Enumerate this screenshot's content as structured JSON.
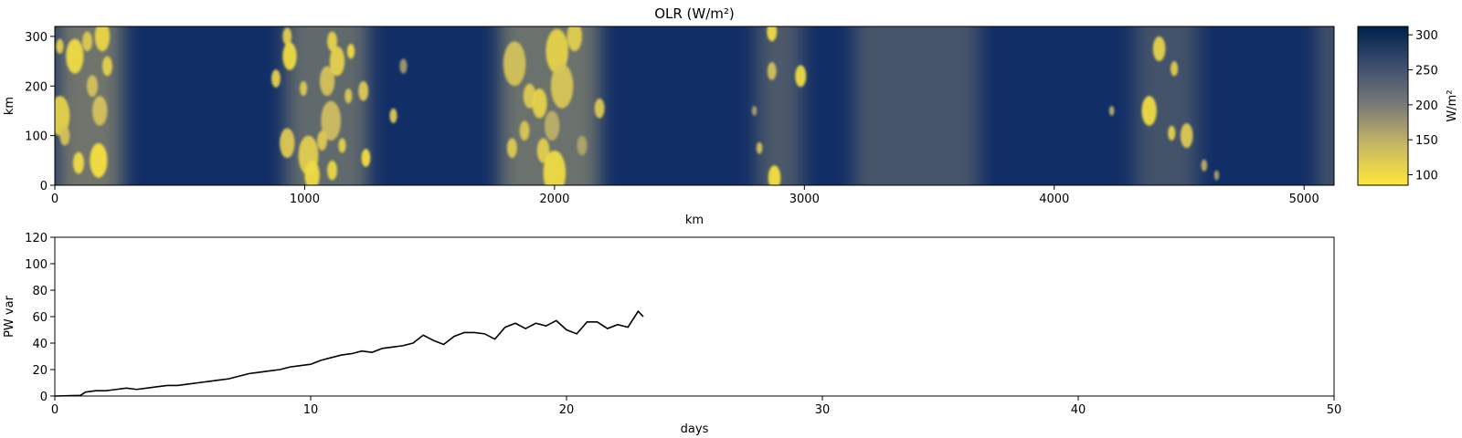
{
  "chart_data": [
    {
      "type": "heatmap",
      "title": "OLR (W/m²)",
      "xlabel": "km",
      "ylabel": "km",
      "xlim": [
        0,
        5120
      ],
      "ylim": [
        0,
        320
      ],
      "xticks": [
        0,
        1000,
        2000,
        3000,
        4000,
        5000
      ],
      "yticks": [
        0,
        100,
        200,
        300
      ],
      "colorbar": {
        "label": "W/m²",
        "range": [
          85,
          312
        ],
        "ticks": [
          100,
          150,
          200,
          250,
          300
        ],
        "colormap": "cividis (yellow = low OLR, dark blue = high OLR)",
        "low_color": "#fde737",
        "mid_color": "#7c7b78",
        "high_color": "#00204c"
      },
      "convective_bands_km": [
        {
          "center": 140,
          "width": 260,
          "strength": 0.8
        },
        {
          "center": 1090,
          "width": 330,
          "strength": 0.6
        },
        {
          "center": 1980,
          "width": 400,
          "strength": 0.75
        },
        {
          "center": 2900,
          "width": 180,
          "strength": 0.3
        },
        {
          "center": 3450,
          "width": 500,
          "strength": 0.25
        },
        {
          "center": 4450,
          "width": 250,
          "strength": 0.2
        },
        {
          "center": 5100,
          "width": 80,
          "strength": 0.3
        }
      ],
      "cells": [
        {
          "x": 80,
          "y": 260,
          "r": 35,
          "v": 100
        },
        {
          "x": 20,
          "y": 280,
          "r": 15,
          "v": 110
        },
        {
          "x": 190,
          "y": 300,
          "r": 30,
          "v": 105
        },
        {
          "x": 130,
          "y": 290,
          "r": 20,
          "v": 120
        },
        {
          "x": 210,
          "y": 240,
          "r": 20,
          "v": 110
        },
        {
          "x": 20,
          "y": 140,
          "r": 40,
          "v": 110
        },
        {
          "x": 150,
          "y": 200,
          "r": 22,
          "v": 130
        },
        {
          "x": 180,
          "y": 150,
          "r": 30,
          "v": 130
        },
        {
          "x": 95,
          "y": 45,
          "r": 22,
          "v": 100
        },
        {
          "x": 175,
          "y": 50,
          "r": 35,
          "v": 95
        },
        {
          "x": 40,
          "y": 100,
          "r": 20,
          "v": 130
        },
        {
          "x": 930,
          "y": 300,
          "r": 18,
          "v": 115
        },
        {
          "x": 940,
          "y": 260,
          "r": 28,
          "v": 100
        },
        {
          "x": 885,
          "y": 215,
          "r": 18,
          "v": 110
        },
        {
          "x": 995,
          "y": 195,
          "r": 15,
          "v": 120
        },
        {
          "x": 1090,
          "y": 210,
          "r": 30,
          "v": 130
        },
        {
          "x": 1130,
          "y": 250,
          "r": 30,
          "v": 110
        },
        {
          "x": 1110,
          "y": 290,
          "r": 20,
          "v": 110
        },
        {
          "x": 1185,
          "y": 270,
          "r": 15,
          "v": 100
        },
        {
          "x": 1105,
          "y": 130,
          "r": 40,
          "v": 135
        },
        {
          "x": 930,
          "y": 85,
          "r": 30,
          "v": 120
        },
        {
          "x": 1015,
          "y": 60,
          "r": 40,
          "v": 115
        },
        {
          "x": 1070,
          "y": 90,
          "r": 20,
          "v": 120
        },
        {
          "x": 1030,
          "y": 20,
          "r": 30,
          "v": 100
        },
        {
          "x": 1110,
          "y": 30,
          "r": 20,
          "v": 105
        },
        {
          "x": 1150,
          "y": 80,
          "r": 15,
          "v": 110
        },
        {
          "x": 1175,
          "y": 180,
          "r": 15,
          "v": 120
        },
        {
          "x": 1235,
          "y": 190,
          "r": 20,
          "v": 120
        },
        {
          "x": 1245,
          "y": 55,
          "r": 18,
          "v": 95
        },
        {
          "x": 1355,
          "y": 140,
          "r": 15,
          "v": 120
        },
        {
          "x": 1395,
          "y": 240,
          "r": 15,
          "v": 170
        },
        {
          "x": 1840,
          "y": 245,
          "r": 45,
          "v": 130
        },
        {
          "x": 1830,
          "y": 75,
          "r": 20,
          "v": 120
        },
        {
          "x": 1900,
          "y": 180,
          "r": 25,
          "v": 120
        },
        {
          "x": 1940,
          "y": 165,
          "r": 30,
          "v": 110
        },
        {
          "x": 1955,
          "y": 70,
          "r": 25,
          "v": 115
        },
        {
          "x": 1880,
          "y": 110,
          "r": 20,
          "v": 125
        },
        {
          "x": 2000,
          "y": 25,
          "r": 45,
          "v": 100
        },
        {
          "x": 2010,
          "y": 270,
          "r": 45,
          "v": 110
        },
        {
          "x": 2030,
          "y": 200,
          "r": 45,
          "v": 125
        },
        {
          "x": 2080,
          "y": 300,
          "r": 30,
          "v": 115
        },
        {
          "x": 2180,
          "y": 155,
          "r": 20,
          "v": 120
        },
        {
          "x": 1990,
          "y": 120,
          "r": 30,
          "v": 150
        },
        {
          "x": 2110,
          "y": 80,
          "r": 20,
          "v": 160
        },
        {
          "x": 2870,
          "y": 310,
          "r": 20,
          "v": 100
        },
        {
          "x": 2870,
          "y": 230,
          "r": 18,
          "v": 130
        },
        {
          "x": 2985,
          "y": 220,
          "r": 22,
          "v": 100
        },
        {
          "x": 2880,
          "y": 15,
          "r": 25,
          "v": 95
        },
        {
          "x": 2820,
          "y": 75,
          "r": 12,
          "v": 130
        },
        {
          "x": 2800,
          "y": 150,
          "r": 10,
          "v": 160
        },
        {
          "x": 4420,
          "y": 275,
          "r": 25,
          "v": 110
        },
        {
          "x": 4480,
          "y": 235,
          "r": 15,
          "v": 115
        },
        {
          "x": 4380,
          "y": 150,
          "r": 30,
          "v": 100
        },
        {
          "x": 4470,
          "y": 105,
          "r": 15,
          "v": 110
        },
        {
          "x": 4530,
          "y": 100,
          "r": 25,
          "v": 120
        },
        {
          "x": 4230,
          "y": 150,
          "r": 10,
          "v": 150
        },
        {
          "x": 4600,
          "y": 40,
          "r": 12,
          "v": 150
        },
        {
          "x": 4650,
          "y": 20,
          "r": 10,
          "v": 160
        }
      ]
    },
    {
      "type": "line",
      "title": "",
      "xlabel": "days",
      "ylabel": "PW var",
      "xlim": [
        0,
        50
      ],
      "ylim": [
        0,
        120
      ],
      "xticks": [
        0,
        10,
        20,
        30,
        40,
        50
      ],
      "yticks": [
        0,
        20,
        40,
        60,
        80,
        100,
        120
      ],
      "line_color": "#000000",
      "series": [
        {
          "x": [
            0,
            1,
            1.2,
            1.6,
            2,
            2.4,
            2.8,
            3.2,
            3.6,
            4,
            4.4,
            4.8,
            5.2,
            5.6,
            6,
            6.4,
            6.8,
            7.2,
            7.6,
            8,
            8.4,
            8.8,
            9.2,
            9.6,
            10,
            10.4,
            10.8,
            11.2,
            11.6,
            12,
            12.4,
            12.8,
            13.2,
            13.6,
            14,
            14.4,
            14.8,
            15.2,
            15.6,
            16,
            16.4,
            16.8,
            17.2,
            17.6,
            18,
            18.4,
            18.8,
            19.2,
            19.6,
            20,
            20.4,
            20.8,
            21.2,
            21.6,
            22,
            22.4,
            22.8,
            23
          ],
          "y": [
            0,
            0.5,
            3,
            4,
            4,
            5,
            6,
            5,
            6,
            7,
            8,
            8,
            9,
            10,
            11,
            12,
            13,
            15,
            17,
            18,
            19,
            20,
            22,
            23,
            24,
            27,
            29,
            31,
            32,
            34,
            33,
            36,
            37,
            38,
            40,
            46,
            42,
            39,
            45,
            48,
            48,
            47,
            43,
            52,
            55,
            51,
            55,
            53,
            57,
            50,
            47,
            56,
            56,
            51,
            54,
            52,
            64,
            60
          ]
        }
      ]
    }
  ]
}
